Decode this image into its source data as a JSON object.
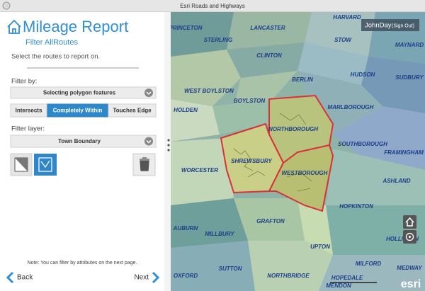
{
  "window_title": "Esri Roads and Highways",
  "panel": {
    "title": "Mileage Report",
    "subtitle": "Filter AllRoutes",
    "instruction": "Select the routes to report on.",
    "filter_by_label": "Filter by:",
    "filter_select": "Selecting polygon features",
    "filter_modes": [
      "Intersects",
      "Completely Within",
      "Touches Edge"
    ],
    "filter_layer_label": "Filter layer:",
    "layer_select": "Town Boundary",
    "note": "Note: You can filter by attributes on the next page.",
    "back": "Back",
    "next": "Next"
  },
  "map": {
    "user": "JohnDay",
    "sign_out": "(Sign Out)",
    "logo": "esri",
    "labels": [
      "PRINCETON",
      "LANCASTER",
      "HARVARD",
      "STERLING",
      "STOW",
      "MAYNARD",
      "CLINTON",
      "BERLIN",
      "HUDSON",
      "SUDBURY",
      "WEST BOYLSTON",
      "BOYLSTON",
      "MARLBOROUGH",
      "HOLDEN",
      "NORTHBOROUGH",
      "SOUTHBOROUGH",
      "FRAMINGHAM",
      "SHREWSBURY",
      "WESTBOROUGH",
      "WORCESTER",
      "ASHLAND",
      "HOPKINTON",
      "AUBURN",
      "MILLBURY",
      "GRAFTON",
      "UPTON",
      "HOLLISTON",
      "SUTTON",
      "NORTHBRIDGE",
      "MILFORD",
      "MEDWAY",
      "OXFORD",
      "HOPEDALE",
      "MENDON"
    ]
  }
}
